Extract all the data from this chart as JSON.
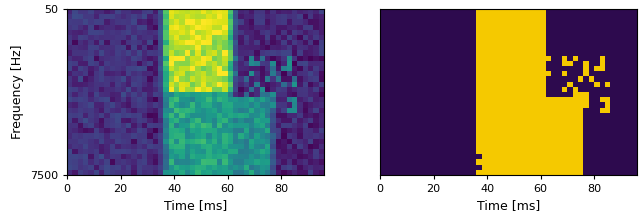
{
  "ylabel": "Frequency [Hz]",
  "xlabel": "Time [ms]",
  "ytick_top": "50",
  "ytick_bottom": "7500",
  "xticks": [
    0,
    20,
    40,
    60,
    80
  ],
  "n_freq": 32,
  "n_time": 48,
  "binary_on": "#f5c900",
  "binary_off": "#2d0a4e",
  "figsize": [
    6.4,
    2.24
  ],
  "dpi": 100
}
